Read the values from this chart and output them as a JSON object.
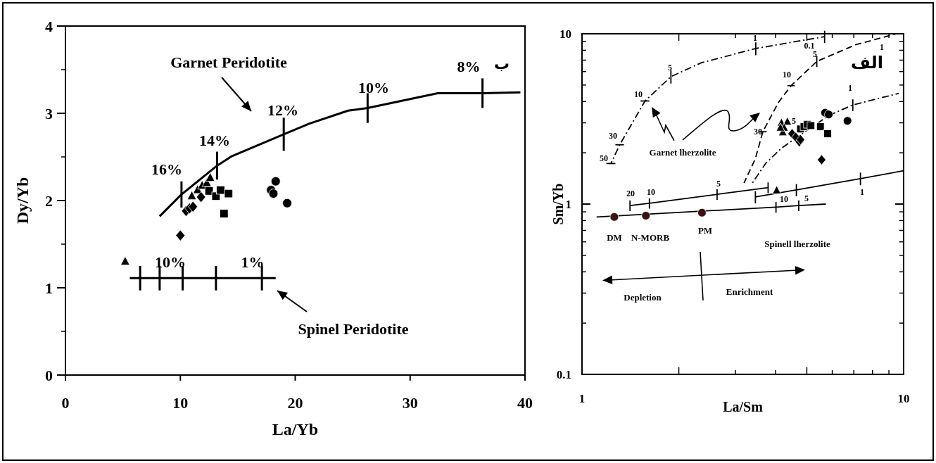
{
  "chart_data": [
    {
      "type": "scatter",
      "xlabel": "La/Yb",
      "ylabel": "Dy/Yb",
      "xlim": [
        0,
        40
      ],
      "ylim": [
        0,
        4
      ],
      "xticks": [
        0,
        10,
        20,
        30,
        40
      ],
      "yticks": [
        0,
        1,
        2,
        3,
        4
      ],
      "series": [
        {
          "type": "line",
          "color": "#000000",
          "line_style": "solid",
          "x": [
            8.2,
            10.1,
            13.2,
            14.5,
            19.0,
            21.2,
            24.6,
            26.3,
            32.4,
            36.3,
            39.6
          ],
          "values": [
            1.82,
            2.07,
            2.4,
            2.51,
            2.76,
            2.88,
            3.03,
            3.06,
            3.23,
            3.23,
            3.24
          ],
          "errors": [
            null,
            0.15,
            0.16,
            null,
            0.19,
            null,
            null,
            0.17,
            null,
            0.17,
            null
          ]
        },
        {
          "type": "line",
          "color": "#000000",
          "line_style": "solid",
          "x": [
            5.6,
            6.5,
            8.2,
            10.2,
            13.1,
            17.1,
            18.3
          ],
          "values": [
            1.11,
            1.11,
            1.11,
            1.11,
            1.11,
            1.11,
            1.11
          ],
          "errors": [
            null,
            0.14,
            0.14,
            0.14,
            0.14,
            0.14,
            null
          ]
        },
        {
          "type": "scatter",
          "color": "#000000",
          "marker": "triangle",
          "x": [
            11.0,
            11.5,
            11.9,
            12.3,
            12.6,
            5.2
          ],
          "values": [
            2.05,
            2.12,
            2.17,
            2.2,
            2.26,
            1.3
          ]
        },
        {
          "type": "scatter",
          "color": "#000000",
          "marker": "diamond",
          "x": [
            10.5,
            10.8,
            11.1,
            11.8,
            10.0
          ],
          "values": [
            1.88,
            1.91,
            1.93,
            2.04,
            1.6
          ]
        },
        {
          "type": "scatter",
          "color": "#000000",
          "marker": "square",
          "x": [
            12.5,
            13.1,
            13.5,
            14.2,
            13.8
          ],
          "values": [
            2.11,
            2.05,
            2.12,
            2.08,
            1.85
          ]
        },
        {
          "type": "scatter",
          "color": "#000000",
          "marker": "circle",
          "x": [
            17.9,
            18.3,
            18.1,
            19.3
          ],
          "values": [
            2.12,
            2.22,
            2.08,
            1.97
          ]
        }
      ],
      "annotations": [
        "Garnet Peridotite",
        "16%",
        "14%",
        "12%",
        "10%",
        "8%",
        "ب",
        "10%",
        "1%",
        "Spinel Peridotite"
      ]
    },
    {
      "type": "scatter",
      "xlabel": "La/Sm",
      "ylabel": "Sm/Yb",
      "log": "xy",
      "xlim": [
        1,
        10
      ],
      "ylim": [
        0.1,
        10
      ],
      "xticks": [
        1,
        10
      ],
      "yticks": [
        0.1,
        1,
        10
      ],
      "series": [
        {
          "type": "line",
          "color": "#000000",
          "line_style": "dashdot",
          "x": [
            1.23,
            1.31,
            1.57,
            1.89,
            2.35,
            3.47,
            4.47,
            5.68
          ],
          "values": [
            1.73,
            2.23,
            4.03,
            5.6,
            6.76,
            8.19,
            8.91,
            9.62
          ],
          "xerrors": [
            0.04,
            0.04,
            0.05,
            null,
            null,
            null,
            null,
            null
          ],
          "errors": [
            null,
            null,
            null,
            0.5,
            null,
            0.7,
            null,
            0.8
          ]
        },
        {
          "type": "line",
          "color": "#000000",
          "line_style": "dashed",
          "x": [
            3.19,
            3.46,
            3.65,
            4.08,
            4.47,
            5.37,
            7.08,
            9.49
          ],
          "values": [
            1.33,
            1.85,
            2.66,
            3.95,
            4.96,
            6.88,
            8.61,
            10.0
          ],
          "xerrors": [
            null,
            null,
            0.1,
            null,
            0.12,
            null,
            null,
            null
          ],
          "errors": [
            null,
            null,
            null,
            null,
            null,
            0.5,
            null,
            null
          ]
        },
        {
          "type": "line",
          "color": "#000000",
          "line_style": "dashdot",
          "x": [
            3.37,
            3.72,
            4.16,
            4.99,
            5.89,
            6.95,
            9.67
          ],
          "values": [
            1.31,
            1.73,
            2.12,
            2.7,
            3.33,
            3.82,
            4.47
          ],
          "errors": [
            null,
            null,
            null,
            null,
            null,
            0.3,
            null
          ]
        },
        {
          "type": "line",
          "color": "#000000",
          "line_style": "solid",
          "x": [
            1.41,
            1.62,
            2.63,
            3.79
          ],
          "values": [
            0.98,
            1.01,
            1.14,
            1.25
          ],
          "errors": [
            0.07,
            0.07,
            0.08,
            0.09
          ]
        },
        {
          "type": "line",
          "color": "#000000",
          "line_style": "solid",
          "x": [
            3.46,
            4.64,
            7.34,
            10.0
          ],
          "values": [
            1.1,
            1.21,
            1.41,
            1.57
          ],
          "errors": [
            0.09,
            0.1,
            0.12,
            null
          ]
        },
        {
          "type": "line",
          "color": "#000000",
          "line_style": "solid",
          "x": [
            1.11,
            4.01,
            4.72,
            5.73
          ],
          "values": [
            0.84,
            0.96,
            0.98,
            1.0
          ],
          "errors": [
            null,
            0.07,
            0.07,
            null
          ]
        },
        {
          "type": "scatter",
          "color": "#3a1414",
          "marker": "circle",
          "x": [
            1.26,
            1.58,
            2.36
          ],
          "values": [
            0.84,
            0.855,
            0.89
          ]
        },
        {
          "type": "scatter",
          "color": "#000000",
          "marker": "triangle",
          "x": [
            4.17,
            4.35,
            4.25,
            4.21,
            4.14,
            4.03
          ],
          "values": [
            2.99,
            3.04,
            2.8,
            2.63,
            2.8,
            1.2
          ]
        },
        {
          "type": "scatter",
          "color": "#000000",
          "marker": "diamond",
          "x": [
            4.5,
            4.62,
            4.74,
            4.78,
            5.56
          ],
          "values": [
            2.59,
            2.47,
            2.32,
            2.39,
            1.82
          ]
        },
        {
          "type": "scatter",
          "color": "#000000",
          "marker": "square",
          "x": [
            4.78,
            4.9,
            5.02,
            5.15,
            5.51,
            5.8
          ],
          "values": [
            2.76,
            2.85,
            2.94,
            2.89,
            2.85,
            2.59
          ]
        },
        {
          "type": "scatter",
          "color": "#000000",
          "marker": "circle",
          "x": [
            5.7,
            5.85,
            6.69
          ],
          "values": [
            3.44,
            3.36,
            3.08
          ]
        }
      ],
      "annotations": [
        "50",
        "30",
        "10",
        "5",
        "1",
        "0.1",
        "30",
        "10",
        "5",
        "1",
        "الف",
        "5",
        "1",
        "Garnet lherzolite",
        "20",
        "10",
        "5",
        "1",
        "10",
        "5",
        "DM",
        "N-MORB",
        "PM",
        "Spinell lherzolite",
        "Depletion",
        "Enrichment"
      ]
    }
  ]
}
